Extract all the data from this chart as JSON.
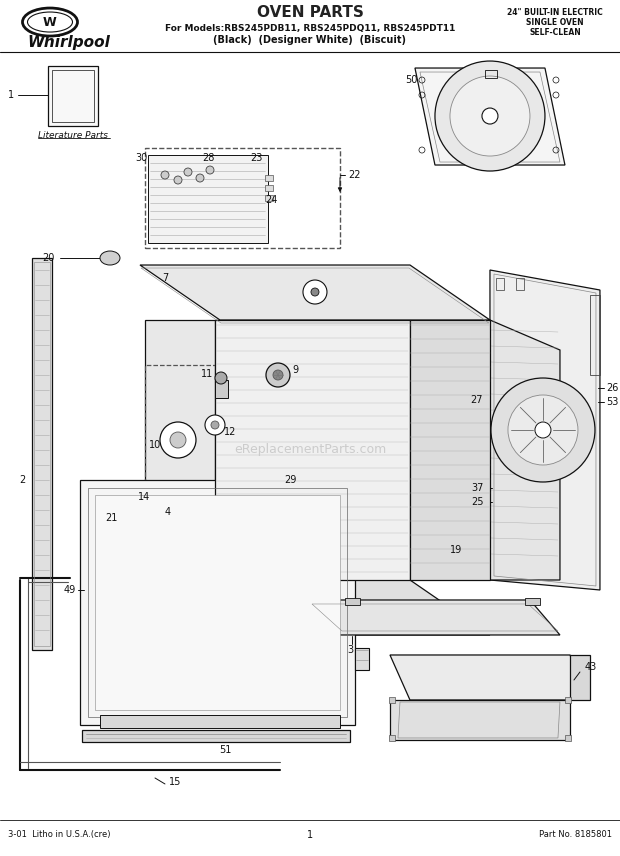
{
  "title": "OVEN PARTS",
  "subtitle_line1": "For Models:RBS245PDB11, RBS245PDQ11, RBS245PDT11",
  "subtitle_line2": "(Black)  (Designer White)  (Biscuit)",
  "top_right_line1": "24\" BUILT-IN ELECTRIC",
  "top_right_line2": "SINGLE OVEN",
  "top_right_line3": "SELF-CLEAN",
  "whirlpool_text": "Whirlpool",
  "footer_left": "3-01  Litho in U.S.A.(cre)",
  "footer_center": "1",
  "footer_right": "Part No. 8185801",
  "watermark": "eReplacementParts.com",
  "bg_color": "#ffffff",
  "lc": "#111111"
}
